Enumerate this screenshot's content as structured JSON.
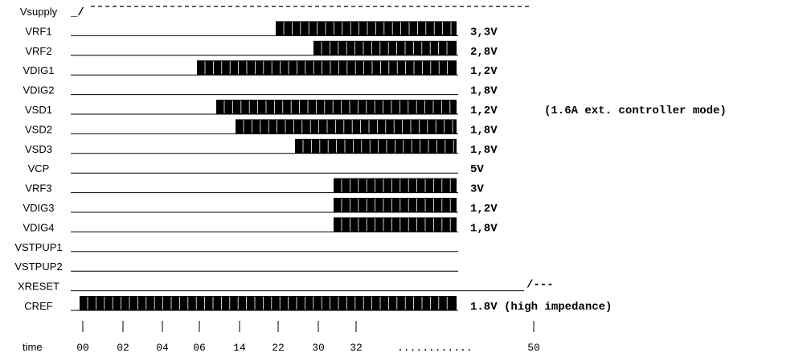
{
  "signals": [
    {
      "name": "Vsupply",
      "prefix": "_/",
      "voltage": "",
      "active_from_tick": null
    },
    {
      "name": "VRF1",
      "voltage": "3,3V",
      "active_from_tick": "22"
    },
    {
      "name": "VRF2",
      "voltage": "2,8V",
      "active_from_tick": "30"
    },
    {
      "name": "VDIG1",
      "voltage": "1,2V",
      "active_from_tick": "04"
    },
    {
      "name": "VDIG2",
      "voltage": "1,8V",
      "active_from_tick": null
    },
    {
      "name": "VSD1",
      "voltage": "1,2V",
      "active_from_tick": "06",
      "note": "(1.6A ext. controller mode)"
    },
    {
      "name": "VSD2",
      "voltage": "1,8V",
      "active_from_tick": "14"
    },
    {
      "name": "VSD3",
      "voltage": "1,8V",
      "active_from_tick": "22"
    },
    {
      "name": "VCP",
      "voltage": "5V",
      "active_from_tick": null
    },
    {
      "name": "VRF3",
      "voltage": "3V",
      "active_from_tick": "32"
    },
    {
      "name": "VDIG3",
      "voltage": "1,2V",
      "active_from_tick": "32"
    },
    {
      "name": "VDIG4",
      "voltage": "1,8V",
      "active_from_tick": "32"
    },
    {
      "name": "VSTPUP1",
      "voltage": "",
      "active_from_tick": null
    },
    {
      "name": "VSTPUP2",
      "voltage": "",
      "active_from_tick": null
    },
    {
      "name": "XRESET",
      "voltage": "",
      "suffix": "/---",
      "active_from_tick": "50"
    },
    {
      "name": "CREF",
      "voltage": "1.8V (high impedance)",
      "active_from_tick": "00"
    }
  ],
  "time_axis": {
    "label": "time",
    "ticks": [
      "00",
      "02",
      "04",
      "06",
      "14",
      "22",
      "30",
      "32",
      "50"
    ],
    "ellipsis": "............"
  }
}
